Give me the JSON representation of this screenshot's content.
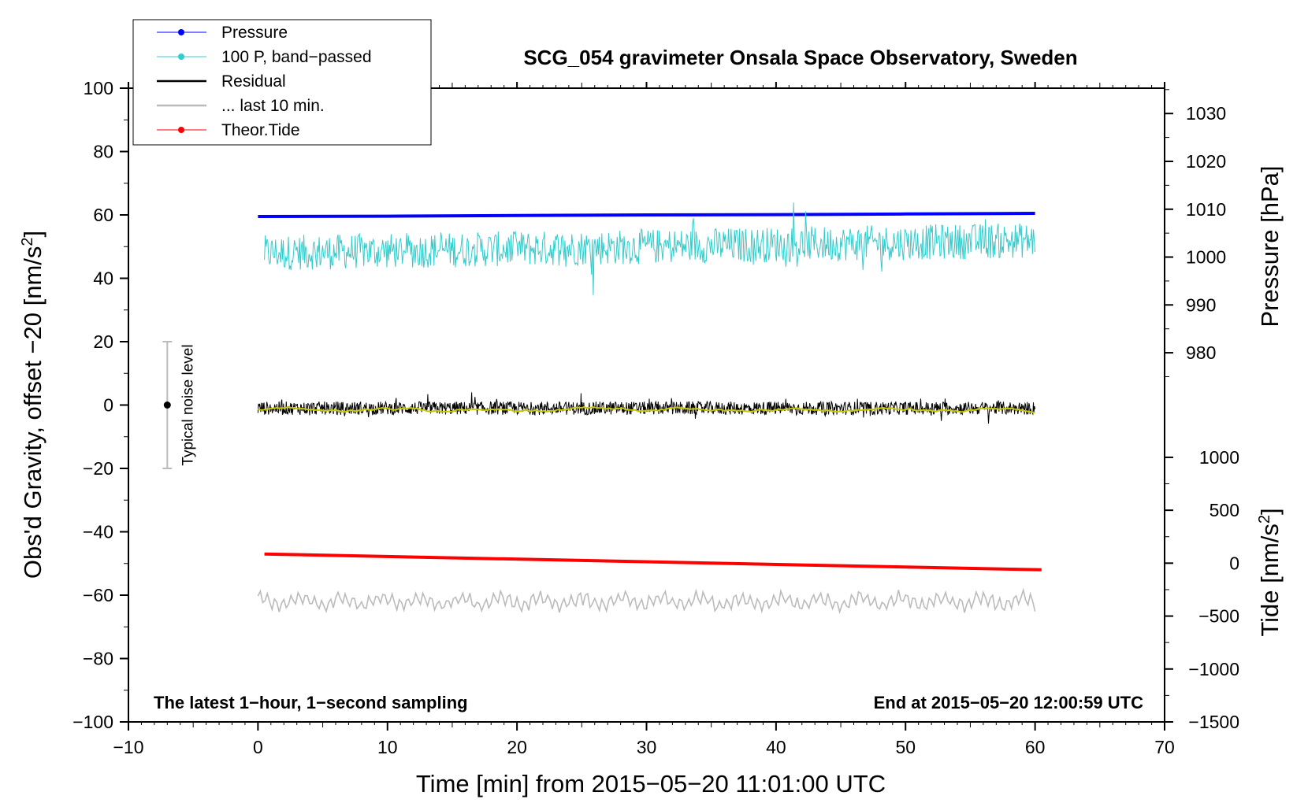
{
  "chart_data": {
    "type": "line",
    "title": "SCG_054 gravimeter Onsala Space Observatory, Sweden",
    "xlabel": "Time [min] from 2015−05−20 11:01:00 UTC",
    "ylabel_main": "Obs'd Gravity, offset −20 [nm/s",
    "ylabel_main_sup": "2",
    "ylabel_main_end": "]",
    "ylabel_pressure": "Pressure [hPa]",
    "ylabel_tide": "Tide [nm/s",
    "ylabel_tide_sup": "2",
    "ylabel_tide_end": "]",
    "xlim": [
      -10,
      70
    ],
    "ylim": [
      -100,
      100
    ],
    "x_ticks": [
      -10,
      0,
      10,
      20,
      30,
      40,
      50,
      60,
      70
    ],
    "x_tick_labels": [
      "−10",
      "0",
      "10",
      "20",
      "30",
      "40",
      "50",
      "60",
      "70"
    ],
    "y_ticks": [
      -100,
      -80,
      -60,
      -40,
      -20,
      0,
      20,
      40,
      60,
      80,
      100
    ],
    "y_tick_labels": [
      "−100",
      "−80",
      "−60",
      "−40",
      "−20",
      "0",
      "20",
      "40",
      "60",
      "80",
      "100"
    ],
    "pressure_axis": {
      "ticks": [
        980,
        990,
        1000,
        1010,
        1020,
        1030
      ],
      "tick_labels": [
        "980",
        "990",
        "1000",
        "1010",
        "1020",
        "1030"
      ],
      "map_y": [
        [
          980,
          16.5
        ],
        [
          1030,
          92
        ]
      ]
    },
    "tide_axis": {
      "ticks": [
        -1500,
        -1000,
        -500,
        0,
        500,
        1000
      ],
      "tick_labels": [
        "−1500",
        "−1000",
        "−500",
        "0",
        "500",
        "1000"
      ],
      "map_y": [
        [
          -1500,
          -100
        ],
        [
          1000,
          -16.5
        ]
      ]
    },
    "legend": {
      "position": "top-left",
      "items": [
        {
          "label": "Pressure",
          "color": "#0000ff",
          "marker": true
        },
        {
          "label": "100 P, band−passed",
          "color": "#33cccc",
          "marker": true
        },
        {
          "label": "Residual",
          "color": "#000000",
          "marker": false
        },
        {
          "label": "... last 10 min.",
          "color": "#bbbbbb",
          "marker": false
        },
        {
          "label": "Theor.Tide",
          "color": "#ff0000",
          "marker": true
        }
      ]
    },
    "series": [
      {
        "name": "Pressure",
        "color": "#0000ff",
        "x": [
          0,
          10,
          20,
          30,
          40,
          50,
          60
        ],
        "values": [
          59.5,
          59.6,
          59.8,
          60.0,
          60.1,
          60.3,
          60.5
        ]
      },
      {
        "name": "100 P, band−passed",
        "color": "#33cccc",
        "x_range": [
          0.5,
          60
        ],
        "center": 48,
        "amplitude": 8,
        "min": 30,
        "max": 64
      },
      {
        "name": "Residual",
        "color": "#000000",
        "x_range": [
          0,
          60
        ],
        "center": -1,
        "amplitude": 3,
        "min": -9,
        "max": 4
      },
      {
        "name": "Residual smoothed",
        "color": "#c8c800",
        "x_range": [
          0,
          60
        ],
        "center": -1.5,
        "amplitude": 0.8
      },
      {
        "name": "... last 10 min.",
        "color": "#bbbbbb",
        "x_range": [
          0,
          60
        ],
        "center": -62,
        "amplitude": 3.5,
        "min": -68,
        "max": -56
      },
      {
        "name": "Theor.Tide",
        "color": "#ff0000",
        "x": [
          0.5,
          60.5
        ],
        "values": [
          -47,
          -52
        ]
      }
    ],
    "noise_bar": {
      "label": "Typical noise level",
      "x": -7,
      "center": 0,
      "low": -20,
      "high": 20
    },
    "annotations": {
      "bottom_left": "The latest 1−hour, 1−second sampling",
      "bottom_right": "End at 2015−05−20 12:00:59 UTC"
    },
    "grid": false
  }
}
